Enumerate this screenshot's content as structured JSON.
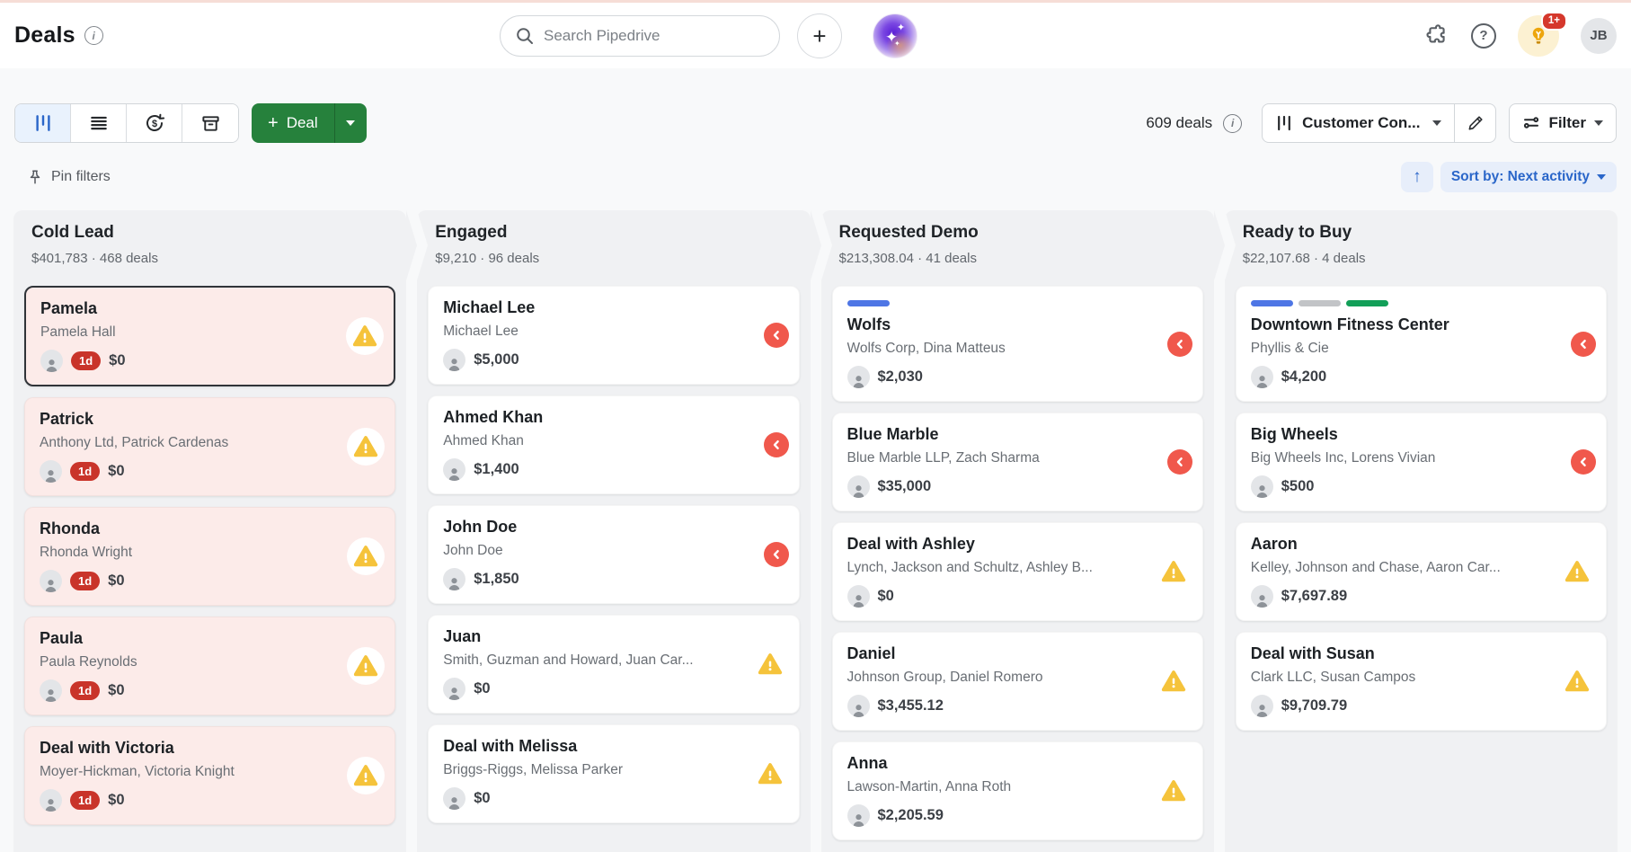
{
  "header": {
    "title": "Deals",
    "search_placeholder": "Search Pipedrive",
    "notifications_badge": "1+",
    "user_initials": "JB"
  },
  "glyphs": {
    "plus": "+",
    "help": "?",
    "info": "i",
    "dollar": "$",
    "sort_up_arrow": "↑",
    "sparkle_large": "✦",
    "sparkle_medium": "✦",
    "sparkle_small": "✦"
  },
  "toolbar": {
    "deal_label": "Deal",
    "deals_count": "609 deals",
    "pipeline_name": "Customer Con...",
    "filter_label": "Filter"
  },
  "filters_bar": {
    "pin_label": "Pin filters",
    "sort_label": "Sort by: Next activity"
  },
  "colors": {
    "accent_blue": "#2a66c9",
    "button_green": "#26813c",
    "warning_yellow": "#f5c33b",
    "overdue_red": "#c9342a",
    "rotten_card_pink": "#fcebe9",
    "arrow_indicator_red": "#f0584c",
    "progress_blue": "#4e76e5",
    "progress_gray": "#c2c4c7",
    "progress_green": "#129f58"
  },
  "board": {
    "columns": [
      {
        "name": "Cold Lead",
        "summary": "$401,783 · 468 deals",
        "cards": [
          {
            "title": "Pamela",
            "subtitle": "Pamela Hall",
            "value": "$0",
            "overdue_badge": "1d",
            "indicator": "warning",
            "rotten": true,
            "selected": true
          },
          {
            "title": "Patrick",
            "subtitle": "Anthony Ltd, Patrick Cardenas",
            "value": "$0",
            "overdue_badge": "1d",
            "indicator": "warning",
            "rotten": true
          },
          {
            "title": "Rhonda",
            "subtitle": "Rhonda Wright",
            "value": "$0",
            "overdue_badge": "1d",
            "indicator": "warning",
            "rotten": true
          },
          {
            "title": "Paula",
            "subtitle": "Paula Reynolds",
            "value": "$0",
            "overdue_badge": "1d",
            "indicator": "warning",
            "rotten": true
          },
          {
            "title": "Deal with Victoria",
            "subtitle": "Moyer-Hickman, Victoria Knight",
            "value": "$0",
            "overdue_badge": "1d",
            "indicator": "warning",
            "rotten": true
          }
        ]
      },
      {
        "name": "Engaged",
        "summary": "$9,210 · 96 deals",
        "cards": [
          {
            "title": "Michael Lee",
            "subtitle": "Michael Lee",
            "value": "$5,000",
            "indicator": "arrow"
          },
          {
            "title": "Ahmed Khan",
            "subtitle": "Ahmed Khan",
            "value": "$1,400",
            "indicator": "arrow"
          },
          {
            "title": "John Doe",
            "subtitle": "John Doe",
            "value": "$1,850",
            "indicator": "arrow"
          },
          {
            "title": "Juan",
            "subtitle": "Smith, Guzman and Howard, Juan Car...",
            "value": "$0",
            "indicator": "warning"
          },
          {
            "title": "Deal with Melissa",
            "subtitle": "Briggs-Riggs, Melissa Parker",
            "value": "$0",
            "indicator": "warning"
          }
        ]
      },
      {
        "name": "Requested Demo",
        "summary": "$213,308.04 · 41 deals",
        "cards": [
          {
            "title": "Wolfs",
            "subtitle": "Wolfs Corp, Dina Matteus",
            "value": "$2,030",
            "indicator": "arrow",
            "progress": [
              "blue"
            ]
          },
          {
            "title": "Blue Marble",
            "subtitle": "Blue Marble LLP, Zach Sharma",
            "value": "$35,000",
            "indicator": "arrow"
          },
          {
            "title": "Deal with Ashley",
            "subtitle": "Lynch, Jackson and Schultz, Ashley B...",
            "value": "$0",
            "indicator": "warning"
          },
          {
            "title": "Daniel",
            "subtitle": "Johnson Group, Daniel Romero",
            "value": "$3,455.12",
            "indicator": "warning"
          },
          {
            "title": "Anna",
            "subtitle": "Lawson-Martin, Anna Roth",
            "value": "$2,205.59",
            "indicator": "warning"
          }
        ]
      },
      {
        "name": "Ready to Buy",
        "summary": "$22,107.68 · 4 deals",
        "cards": [
          {
            "title": "Downtown Fitness Center",
            "subtitle": "Phyllis & Cie",
            "value": "$4,200",
            "indicator": "arrow",
            "progress": [
              "blue",
              "gray",
              "green"
            ]
          },
          {
            "title": "Big Wheels",
            "subtitle": "Big Wheels Inc, Lorens Vivian",
            "value": "$500",
            "indicator": "arrow"
          },
          {
            "title": "Aaron",
            "subtitle": "Kelley, Johnson and Chase, Aaron Car...",
            "value": "$7,697.89",
            "indicator": "warning"
          },
          {
            "title": "Deal with Susan",
            "subtitle": "Clark LLC, Susan Campos",
            "value": "$9,709.79",
            "indicator": "warning"
          }
        ]
      }
    ]
  }
}
